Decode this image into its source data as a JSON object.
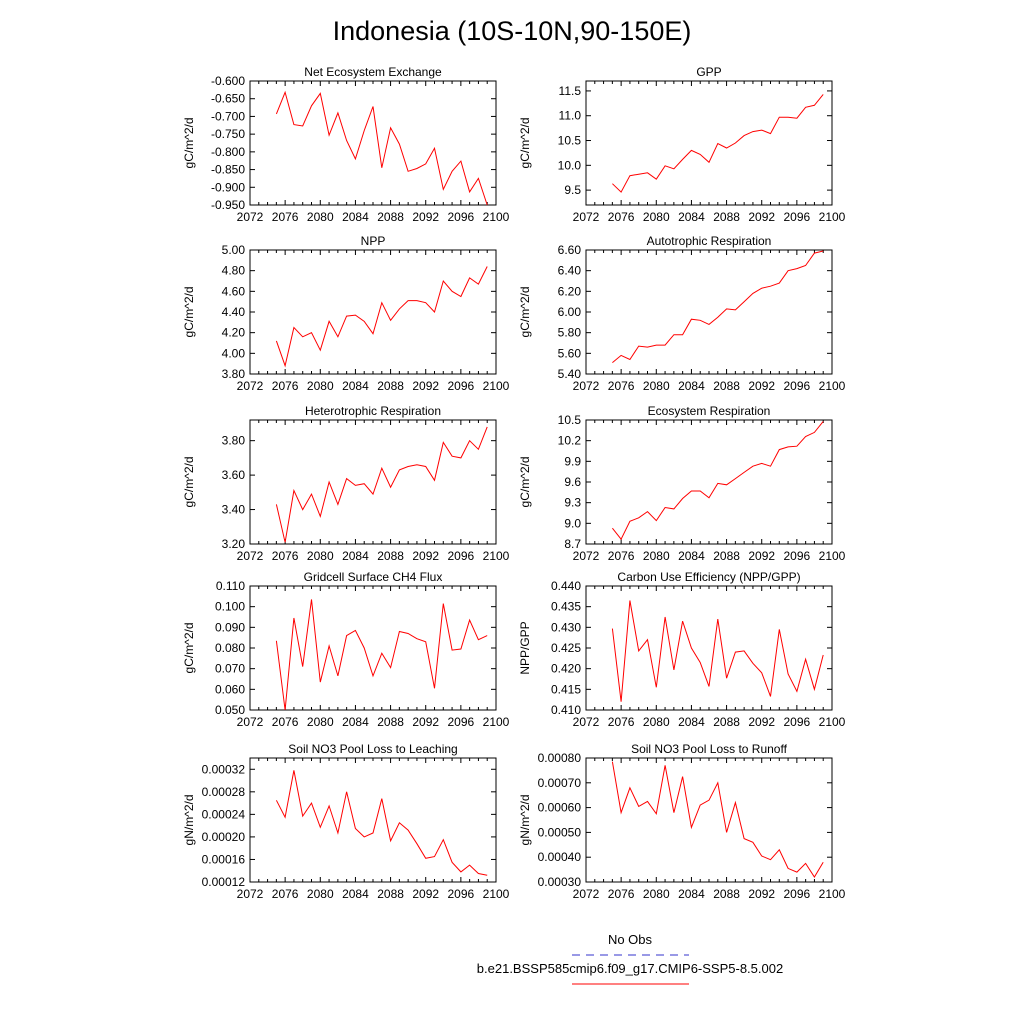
{
  "figure_title": "Indonesia (10S-10N,90-150E)",
  "legend": {
    "obs_label": "No Obs",
    "obs_color": "#3333cc",
    "case_label": "b.e21.BSSP585cmip6.f09_g17.CMIP6-SSP5-8.5.002",
    "case_color": "#ff0000"
  },
  "line_color": "#ff0000",
  "chart_data": [
    {
      "type": "line",
      "title": "Net Ecosystem Exchange",
      "ylabel": "gC/m^2/d",
      "xlabel": "",
      "xlim": [
        2072,
        2100
      ],
      "xticks": [
        "2072",
        "2076",
        "2080",
        "2084",
        "2088",
        "2092",
        "2096",
        "2100"
      ],
      "ylim": [
        -0.95,
        -0.6
      ],
      "yticks": [
        "-0.600",
        "-0.650",
        "-0.700",
        "-0.750",
        "-0.800",
        "-0.850",
        "-0.900",
        "-0.950"
      ],
      "x": [
        2075,
        2076,
        2077,
        2078,
        2079,
        2080,
        2081,
        2082,
        2083,
        2084,
        2085,
        2086,
        2087,
        2088,
        2089,
        2090,
        2091,
        2092,
        2093,
        2094,
        2095,
        2096,
        2097,
        2098,
        2099
      ],
      "values": [
        -0.693,
        -0.632,
        -0.723,
        -0.727,
        -0.67,
        -0.635,
        -0.753,
        -0.69,
        -0.768,
        -0.82,
        -0.74,
        -0.672,
        -0.845,
        -0.732,
        -0.778,
        -0.855,
        -0.847,
        -0.834,
        -0.79,
        -0.906,
        -0.855,
        -0.826,
        -0.913,
        -0.875,
        -0.95
      ]
    },
    {
      "type": "line",
      "title": "GPP",
      "ylabel": "gC/m^2/d",
      "xlabel": "",
      "xlim": [
        2072,
        2100
      ],
      "xticks": [
        "2072",
        "2076",
        "2080",
        "2084",
        "2088",
        "2092",
        "2096",
        "2100"
      ],
      "ylim": [
        9.2,
        11.7
      ],
      "yticks": [
        "9.5",
        "10.0",
        "10.5",
        "11.0",
        "11.5"
      ],
      "x": [
        2075,
        2076,
        2077,
        2078,
        2079,
        2080,
        2081,
        2082,
        2083,
        2084,
        2085,
        2086,
        2087,
        2088,
        2089,
        2090,
        2091,
        2092,
        2093,
        2094,
        2095,
        2096,
        2097,
        2098,
        2099
      ],
      "values": [
        9.63,
        9.46,
        9.79,
        9.82,
        9.85,
        9.72,
        9.99,
        9.93,
        10.12,
        10.3,
        10.22,
        10.06,
        10.44,
        10.35,
        10.45,
        10.6,
        10.68,
        10.71,
        10.64,
        10.97,
        10.97,
        10.95,
        11.17,
        11.21,
        11.43
      ]
    },
    {
      "type": "line",
      "title": "NPP",
      "ylabel": "gC/m^2/d",
      "xlabel": "",
      "xlim": [
        2072,
        2100
      ],
      "xticks": [
        "2072",
        "2076",
        "2080",
        "2084",
        "2088",
        "2092",
        "2096",
        "2100"
      ],
      "ylim": [
        3.8,
        5.0
      ],
      "yticks": [
        "3.80",
        "4.00",
        "4.20",
        "4.40",
        "4.60",
        "4.80",
        "5.00"
      ],
      "x": [
        2075,
        2076,
        2077,
        2078,
        2079,
        2080,
        2081,
        2082,
        2083,
        2084,
        2085,
        2086,
        2087,
        2088,
        2089,
        2090,
        2091,
        2092,
        2093,
        2094,
        2095,
        2096,
        2097,
        2098,
        2099
      ],
      "values": [
        4.12,
        3.88,
        4.25,
        4.16,
        4.2,
        4.03,
        4.31,
        4.16,
        4.36,
        4.37,
        4.31,
        4.19,
        4.49,
        4.32,
        4.43,
        4.51,
        4.51,
        4.49,
        4.4,
        4.7,
        4.6,
        4.55,
        4.73,
        4.67,
        4.84
      ]
    },
    {
      "type": "line",
      "title": "Autotrophic Respiration",
      "ylabel": "gC/m^2/d",
      "xlabel": "",
      "xlim": [
        2072,
        2100
      ],
      "xticks": [
        "2072",
        "2076",
        "2080",
        "2084",
        "2088",
        "2092",
        "2096",
        "2100"
      ],
      "ylim": [
        5.4,
        6.6
      ],
      "yticks": [
        "5.40",
        "5.60",
        "5.80",
        "6.00",
        "6.20",
        "6.40",
        "6.60"
      ],
      "x": [
        2075,
        2076,
        2077,
        2078,
        2079,
        2080,
        2081,
        2082,
        2083,
        2084,
        2085,
        2086,
        2087,
        2088,
        2089,
        2090,
        2091,
        2092,
        2093,
        2094,
        2095,
        2096,
        2097,
        2098,
        2099
      ],
      "values": [
        5.51,
        5.58,
        5.54,
        5.67,
        5.66,
        5.68,
        5.68,
        5.78,
        5.78,
        5.93,
        5.92,
        5.88,
        5.95,
        6.03,
        6.02,
        6.1,
        6.18,
        6.23,
        6.25,
        6.28,
        6.4,
        6.42,
        6.45,
        6.57,
        6.59
      ]
    },
    {
      "type": "line",
      "title": "Heterotrophic Respiration",
      "ylabel": "gC/m^2/d",
      "xlabel": "",
      "xlim": [
        2072,
        2100
      ],
      "xticks": [
        "2072",
        "2076",
        "2080",
        "2084",
        "2088",
        "2092",
        "2096",
        "2100"
      ],
      "ylim": [
        3.2,
        3.92
      ],
      "yticks": [
        "3.20",
        "3.40",
        "3.60",
        "3.80"
      ],
      "x": [
        2075,
        2076,
        2077,
        2078,
        2079,
        2080,
        2081,
        2082,
        2083,
        2084,
        2085,
        2086,
        2087,
        2088,
        2089,
        2090,
        2091,
        2092,
        2093,
        2094,
        2095,
        2096,
        2097,
        2098,
        2099
      ],
      "values": [
        3.43,
        3.21,
        3.51,
        3.4,
        3.49,
        3.36,
        3.56,
        3.43,
        3.58,
        3.54,
        3.55,
        3.49,
        3.64,
        3.53,
        3.63,
        3.65,
        3.66,
        3.65,
        3.57,
        3.79,
        3.71,
        3.7,
        3.8,
        3.75,
        3.88
      ]
    },
    {
      "type": "line",
      "title": "Ecosystem Respiration",
      "ylabel": "gC/m^2/d",
      "xlabel": "",
      "xlim": [
        2072,
        2100
      ],
      "xticks": [
        "2072",
        "2076",
        "2080",
        "2084",
        "2088",
        "2092",
        "2096",
        "2100"
      ],
      "ylim": [
        8.7,
        10.5
      ],
      "yticks": [
        "8.7",
        "9.0",
        "9.3",
        "9.6",
        "9.9",
        "10.2",
        "10.5"
      ],
      "x": [
        2075,
        2076,
        2077,
        2078,
        2079,
        2080,
        2081,
        2082,
        2083,
        2084,
        2085,
        2086,
        2087,
        2088,
        2089,
        2090,
        2091,
        2092,
        2093,
        2094,
        2095,
        2096,
        2097,
        2098,
        2099
      ],
      "values": [
        8.93,
        8.77,
        9.03,
        9.08,
        9.17,
        9.04,
        9.23,
        9.21,
        9.36,
        9.47,
        9.47,
        9.37,
        9.58,
        9.56,
        9.65,
        9.74,
        9.83,
        9.87,
        9.83,
        10.07,
        10.11,
        10.12,
        10.26,
        10.32,
        10.48
      ]
    },
    {
      "type": "line",
      "title": "Gridcell Surface CH4 Flux",
      "ylabel": "gC/m^2/d",
      "xlabel": "",
      "xlim": [
        2072,
        2100
      ],
      "xticks": [
        "2072",
        "2076",
        "2080",
        "2084",
        "2088",
        "2092",
        "2096",
        "2100"
      ],
      "ylim": [
        0.05,
        0.11
      ],
      "yticks": [
        "0.050",
        "0.060",
        "0.070",
        "0.080",
        "0.090",
        "0.100",
        "0.110"
      ],
      "x": [
        2075,
        2076,
        2077,
        2078,
        2079,
        2080,
        2081,
        2082,
        2083,
        2084,
        2085,
        2086,
        2087,
        2088,
        2089,
        2090,
        2091,
        2092,
        2093,
        2094,
        2095,
        2096,
        2097,
        2098,
        2099
      ],
      "values": [
        0.0835,
        0.05,
        0.0945,
        0.071,
        0.1035,
        0.0635,
        0.081,
        0.0665,
        0.086,
        0.0885,
        0.08,
        0.0665,
        0.0775,
        0.0705,
        0.088,
        0.087,
        0.0845,
        0.083,
        0.0605,
        0.1015,
        0.079,
        0.0795,
        0.0935,
        0.084,
        0.086
      ]
    },
    {
      "type": "line",
      "title": "Carbon Use Efficiency (NPP/GPP)",
      "ylabel": "NPP/GPP",
      "xlabel": "",
      "xlim": [
        2072,
        2100
      ],
      "xticks": [
        "2072",
        "2076",
        "2080",
        "2084",
        "2088",
        "2092",
        "2096",
        "2100"
      ],
      "ylim": [
        0.41,
        0.44
      ],
      "yticks": [
        "0.410",
        "0.415",
        "0.420",
        "0.425",
        "0.430",
        "0.435",
        "0.440"
      ],
      "x": [
        2075,
        2076,
        2077,
        2078,
        2079,
        2080,
        2081,
        2082,
        2083,
        2084,
        2085,
        2086,
        2087,
        2088,
        2089,
        2090,
        2091,
        2092,
        2093,
        2094,
        2095,
        2096,
        2097,
        2098,
        2099
      ],
      "values": [
        0.4297,
        0.412,
        0.4365,
        0.4243,
        0.427,
        0.4155,
        0.4325,
        0.4197,
        0.4315,
        0.425,
        0.4215,
        0.4157,
        0.432,
        0.4177,
        0.424,
        0.4243,
        0.4213,
        0.419,
        0.4133,
        0.4295,
        0.4187,
        0.4145,
        0.4223,
        0.415,
        0.4233
      ]
    },
    {
      "type": "line",
      "title": "Soil NO3 Pool Loss to Leaching",
      "ylabel": "gN/m^2/d",
      "xlabel": "",
      "xlim": [
        2072,
        2100
      ],
      "xticks": [
        "2072",
        "2076",
        "2080",
        "2084",
        "2088",
        "2092",
        "2096",
        "2100"
      ],
      "ylim": [
        0.00012,
        0.00034
      ],
      "yticks": [
        "0.00012",
        "0.00016",
        "0.00020",
        "0.00024",
        "0.00028",
        "0.00032"
      ],
      "x": [
        2075,
        2076,
        2077,
        2078,
        2079,
        2080,
        2081,
        2082,
        2083,
        2084,
        2085,
        2086,
        2087,
        2088,
        2089,
        2090,
        2091,
        2092,
        2093,
        2094,
        2095,
        2096,
        2097,
        2098,
        2099
      ],
      "values": [
        0.000265,
        0.000235,
        0.000318,
        0.000237,
        0.00026,
        0.000217,
        0.000255,
        0.000207,
        0.00028,
        0.000215,
        0.0002,
        0.000207,
        0.000268,
        0.000193,
        0.000225,
        0.000212,
        0.000188,
        0.000162,
        0.000165,
        0.000195,
        0.000155,
        0.000138,
        0.00015,
        0.000135,
        0.000132
      ]
    },
    {
      "type": "line",
      "title": "Soil NO3 Pool Loss to Runoff",
      "ylabel": "gN/m^2/d",
      "xlabel": "",
      "xlim": [
        2072,
        2100
      ],
      "xticks": [
        "2072",
        "2076",
        "2080",
        "2084",
        "2088",
        "2092",
        "2096",
        "2100"
      ],
      "ylim": [
        0.0003,
        0.0008
      ],
      "yticks": [
        "0.00030",
        "0.00040",
        "0.00050",
        "0.00060",
        "0.00070",
        "0.00080"
      ],
      "x": [
        2075,
        2076,
        2077,
        2078,
        2079,
        2080,
        2081,
        2082,
        2083,
        2084,
        2085,
        2086,
        2087,
        2088,
        2089,
        2090,
        2091,
        2092,
        2093,
        2094,
        2095,
        2096,
        2097,
        2098,
        2099
      ],
      "values": [
        0.000785,
        0.00058,
        0.00068,
        0.000605,
        0.000625,
        0.000575,
        0.00077,
        0.00058,
        0.000725,
        0.00052,
        0.00061,
        0.00063,
        0.0007,
        0.0005,
        0.00062,
        0.000475,
        0.00046,
        0.000405,
        0.00039,
        0.00043,
        0.000355,
        0.00034,
        0.000375,
        0.00032,
        0.00038
      ]
    }
  ]
}
